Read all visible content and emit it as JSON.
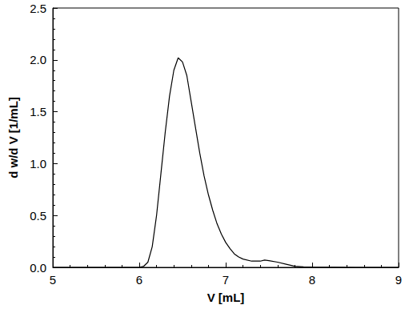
{
  "chart_data": {
    "type": "line",
    "xlabel": "V [mL]",
    "ylabel": "d w/d V [1/mL]",
    "x": [
      5.0,
      6.0,
      6.05,
      6.1,
      6.15,
      6.2,
      6.25,
      6.3,
      6.35,
      6.4,
      6.45,
      6.5,
      6.55,
      6.6,
      6.65,
      6.7,
      6.75,
      6.8,
      6.85,
      6.9,
      6.95,
      7.0,
      7.05,
      7.1,
      7.15,
      7.2,
      7.3,
      7.4,
      7.45,
      7.5,
      7.6,
      7.7,
      7.8,
      7.9,
      8.0,
      8.5,
      9.0
    ],
    "values": [
      0,
      0,
      0.01,
      0.05,
      0.2,
      0.5,
      0.9,
      1.3,
      1.65,
      1.9,
      2.02,
      1.98,
      1.85,
      1.6,
      1.35,
      1.1,
      0.88,
      0.7,
      0.55,
      0.42,
      0.32,
      0.24,
      0.18,
      0.13,
      0.1,
      0.08,
      0.06,
      0.06,
      0.07,
      0.065,
      0.05,
      0.03,
      0.01,
      0.005,
      0.003,
      0,
      0
    ],
    "color": "#000000",
    "xlim": [
      5,
      9
    ],
    "xticks": [
      5,
      6,
      7,
      8,
      9
    ],
    "ylim": [
      0,
      2.5
    ],
    "yticks": [
      {
        "value": 0,
        "label": "0.0"
      },
      0.5,
      {
        "value": 1,
        "label": "1.0"
      },
      1.5,
      {
        "value": 2,
        "label": "2.0"
      },
      2.5
    ],
    "grid": false
  }
}
